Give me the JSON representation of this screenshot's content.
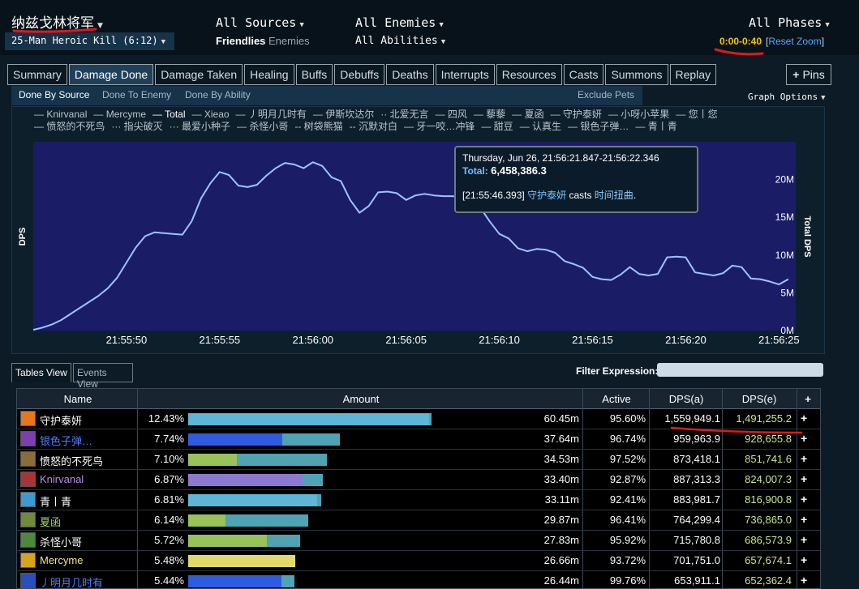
{
  "header": {
    "boss_name": "纳兹戈林将军",
    "encounter": "25-Man Heroic Kill (6:12)",
    "sources": "All Sources",
    "friendlies": "Friendlies",
    "enemies_toggle": "Enemies",
    "enemies": "All Enemies",
    "abilities": "All Abilities",
    "phases": "All Phases",
    "time_range": "0:00-0:40",
    "reset_zoom": "Reset Zoom",
    "bracket_open": "[",
    "bracket_close": "]"
  },
  "tabs": [
    "Summary",
    "Damage Done",
    "Damage Taken",
    "Healing",
    "Buffs",
    "Debuffs",
    "Deaths",
    "Interrupts",
    "Resources",
    "Casts",
    "Summons",
    "Replay"
  ],
  "active_tab": "Damage Done",
  "pins": "Pins",
  "subtabs": {
    "by_source": "Done By Source",
    "to_enemy": "Done To Enemy",
    "by_ability": "Done By Ability",
    "exclude_pets": "Exclude Pets"
  },
  "graph_options": "Graph Options",
  "legend": [
    "— Knirvanal",
    "— Mercyme",
    "— Total",
    "— Xieao",
    "— 丿明月几时有",
    "— 伊斯坎达尔",
    "·· 北爱无言",
    "— 四风",
    "— 藜藜",
    "— 夏函",
    "— 守护泰妍",
    "— 小呀小苹果",
    "— 您丨您",
    "— 愤怒的不死鸟",
    "··· 指尖破灭",
    "··· 最爱小种子",
    "— 杀怪小哥",
    "-- 树袋熊猫",
    "-- 沉默对白",
    "— 牙一咬…冲锋",
    "— 甜豆",
    "— 认真生",
    "— 银色子弹…",
    "— 青丨青"
  ],
  "tooltip": {
    "time": "Thursday, Jun 26, 21:56:21.847-21:56:22.346",
    "total_label": "Total:",
    "total_value": "6,458,386.3",
    "cast_time": "[21:55:46.393]",
    "cast_who": "守护泰妍",
    "cast_verb": "casts",
    "cast_spell": "时间扭曲",
    "cast_end": "."
  },
  "chart_data": {
    "type": "line",
    "ylabel": "DPS",
    "y2label": "Total DPS",
    "ylim": [
      0,
      25000000
    ],
    "yticks": [
      "0M",
      "5M",
      "10M",
      "15M",
      "20M"
    ],
    "ytick_values": [
      0,
      5000000,
      10000000,
      15000000,
      20000000
    ],
    "xticks": [
      "21:55:50",
      "21:55:55",
      "21:56:00",
      "21:56:05",
      "21:56:10",
      "21:56:15",
      "21:56:20",
      "21:56:25"
    ],
    "xtick_seconds": [
      5,
      10,
      15,
      20,
      25,
      30,
      35,
      40
    ],
    "xlim_seconds": [
      0,
      40.9
    ],
    "series": [
      {
        "name": "Total",
        "color": "#9fc3ff",
        "points": [
          [
            0,
            0.1
          ],
          [
            0.5,
            0.4
          ],
          [
            1,
            0.8
          ],
          [
            1.5,
            1.4
          ],
          [
            2,
            2.2
          ],
          [
            2.5,
            3.0
          ],
          [
            3,
            3.8
          ],
          [
            3.5,
            4.6
          ],
          [
            4,
            5.6
          ],
          [
            4.5,
            7.0
          ],
          [
            5,
            9.0
          ],
          [
            5.5,
            11.0
          ],
          [
            6,
            12.5
          ],
          [
            6.5,
            13.0
          ],
          [
            7,
            12.9
          ],
          [
            7.5,
            12.8
          ],
          [
            8,
            12.7
          ],
          [
            8.5,
            14.5
          ],
          [
            9,
            17.5
          ],
          [
            9.5,
            19.5
          ],
          [
            10,
            21.0
          ],
          [
            10.5,
            20.6
          ],
          [
            11,
            19.2
          ],
          [
            11.5,
            19.0
          ],
          [
            12,
            19.3
          ],
          [
            12.5,
            20.5
          ],
          [
            13,
            21.5
          ],
          [
            13.5,
            22.2
          ],
          [
            14,
            22.0
          ],
          [
            14.5,
            21.5
          ],
          [
            15,
            22.3
          ],
          [
            15.5,
            21.8
          ],
          [
            16,
            20.3
          ],
          [
            16.5,
            19.8
          ],
          [
            17,
            17.3
          ],
          [
            17.5,
            15.6
          ],
          [
            18,
            16.5
          ],
          [
            18.5,
            18.3
          ],
          [
            19,
            18.4
          ],
          [
            19.5,
            18.2
          ],
          [
            20,
            17.3
          ],
          [
            20.5,
            17.9
          ],
          [
            21,
            18.1
          ],
          [
            21.5,
            17.9
          ],
          [
            22,
            17.8
          ],
          [
            22.5,
            17.8
          ],
          [
            23,
            17.6
          ],
          [
            23.5,
            17.5
          ],
          [
            24,
            16.2
          ],
          [
            24.5,
            14.4
          ],
          [
            25,
            12.8
          ],
          [
            25.5,
            12.2
          ],
          [
            26,
            10.9
          ],
          [
            26.5,
            10.5
          ],
          [
            27,
            10.8
          ],
          [
            27.5,
            10.7
          ],
          [
            28,
            10.3
          ],
          [
            28.5,
            9.2
          ],
          [
            29,
            8.8
          ],
          [
            29.5,
            8.3
          ],
          [
            30,
            7.1
          ],
          [
            30.5,
            6.8
          ],
          [
            31,
            6.7
          ],
          [
            31.5,
            7.4
          ],
          [
            32,
            8.4
          ],
          [
            32.5,
            7.5
          ],
          [
            33,
            7.3
          ],
          [
            33.5,
            7.5
          ],
          [
            34,
            9.7
          ],
          [
            34.5,
            9.8
          ],
          [
            35,
            9.7
          ],
          [
            35.5,
            7.7
          ],
          [
            36,
            7.5
          ],
          [
            36.5,
            7.3
          ],
          [
            37,
            7.6
          ],
          [
            37.5,
            8.6
          ],
          [
            38,
            8.4
          ],
          [
            38.5,
            6.9
          ],
          [
            39,
            6.8
          ],
          [
            39.5,
            6.5
          ],
          [
            40,
            6.1
          ],
          [
            40.5,
            6.8
          ]
        ]
      }
    ]
  },
  "views": {
    "tables": "Tables View",
    "events": "Events View"
  },
  "filter_label": "Filter Expression:",
  "table": {
    "headers": {
      "name": "Name",
      "amount": "Amount",
      "active": "Active",
      "dps_a": "DPS(a)",
      "dps_e": "DPS(e)",
      "plus": "+"
    },
    "rows": [
      {
        "name": "守护泰妍",
        "name_color": "#ffffff",
        "icon_color": "#e8761a",
        "pct": "12.43%",
        "amount": "60.45m",
        "active": "95.60%",
        "dps_a": "1,559,949.1",
        "dps_e": "1,491,255.2",
        "share": 1.0,
        "bar_main": "#5db6d6",
        "bar_main_frac": 0.99,
        "plus": "+"
      },
      {
        "name": "银色子弹…",
        "name_color": "#4d7fff",
        "icon_color": "#7d3fae",
        "pct": "7.74%",
        "amount": "37.64m",
        "active": "96.74%",
        "dps_a": "959,963.9",
        "dps_e": "928,655.8",
        "share": 0.623,
        "bar_main": "#2f5be0",
        "bar_main_frac": 0.62,
        "plus": "+"
      },
      {
        "name": "愤怒的不死鸟",
        "name_color": "#ffffff",
        "icon_color": "#8a6d3a",
        "pct": "7.10%",
        "amount": "34.53m",
        "active": "97.52%",
        "dps_a": "873,418.1",
        "dps_e": "851,741.6",
        "share": 0.571,
        "bar_main": "#9ac25a",
        "bar_main_frac": 0.35,
        "plus": "+"
      },
      {
        "name": "Knirvanal",
        "name_color": "#b28ee0",
        "icon_color": "#a83438",
        "pct": "6.87%",
        "amount": "33.40m",
        "active": "92.87%",
        "dps_a": "887,313.3",
        "dps_e": "824,007.3",
        "share": 0.553,
        "bar_main": "#8d7ad0",
        "bar_main_frac": 0.85,
        "plus": "+"
      },
      {
        "name": "青丨青",
        "name_color": "#ffffff",
        "icon_color": "#3a9bd4",
        "pct": "6.81%",
        "amount": "33.11m",
        "active": "92.41%",
        "dps_a": "883,981.7",
        "dps_e": "816,900.8",
        "share": 0.548,
        "bar_main": "#5db6d6",
        "bar_main_frac": 0.97,
        "plus": "+"
      },
      {
        "name": "夏函",
        "name_color": "#a7d26a",
        "icon_color": "#6e8a3a",
        "pct": "6.14%",
        "amount": "29.87m",
        "active": "96.41%",
        "dps_a": "764,299.4",
        "dps_e": "736,865.0",
        "share": 0.494,
        "bar_main": "#9ac25a",
        "bar_main_frac": 0.31,
        "plus": "+"
      },
      {
        "name": "杀怪小哥",
        "name_color": "#ffffff",
        "icon_color": "#4b8a3a",
        "pct": "5.72%",
        "amount": "27.83m",
        "active": "95.92%",
        "dps_a": "715,780.8",
        "dps_e": "686,573.9",
        "share": 0.46,
        "bar_main": "#9ac25a",
        "bar_main_frac": 0.7,
        "plus": "+"
      },
      {
        "name": "Mercyme",
        "name_color": "#f0e68c",
        "icon_color": "#d8a21a",
        "pct": "5.48%",
        "amount": "26.66m",
        "active": "93.72%",
        "dps_a": "701,751.0",
        "dps_e": "657,674.1",
        "share": 0.441,
        "bar_main": "#e2d96b",
        "bar_main_frac": 1.0,
        "plus": "+"
      },
      {
        "name": "丿明月几时有",
        "name_color": "#4d7fff",
        "icon_color": "#2b4fb8",
        "pct": "5.44%",
        "amount": "26.44m",
        "active": "99.76%",
        "dps_a": "653,911.1",
        "dps_e": "652,362.4",
        "share": 0.437,
        "bar_main": "#2f5be0",
        "bar_main_frac": 0.88,
        "plus": "+"
      }
    ]
  },
  "colors": {
    "bar_secondary": "#4fa3b3",
    "annotation_red": "#e0191b",
    "plot_bg": "#1a1c66",
    "line": "#9fc3ff"
  }
}
